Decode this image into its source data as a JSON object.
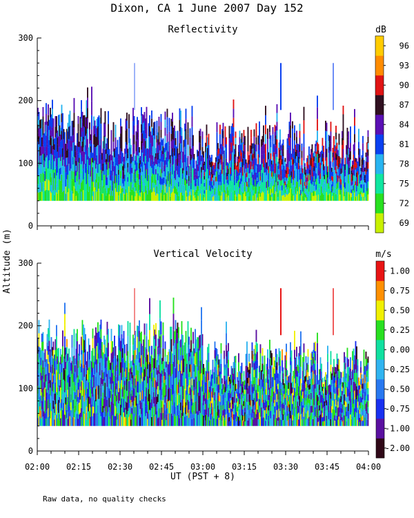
{
  "figure": {
    "title": "Dixon, CA  1 June 2007  Day 152",
    "shared_ylabel": "Altitude (m)",
    "footnote": "Raw data, no quality checks"
  },
  "chart_data": [
    {
      "type": "heatmap",
      "title": "Reflectivity",
      "xlabel": "UT  (PST + 8)",
      "ylabel": "Altitude (m)",
      "x_range_minutes": [
        0,
        120
      ],
      "ylim": [
        0,
        300
      ],
      "ytick_values": [
        0,
        100,
        200,
        300
      ],
      "ytick_labels": [
        "0",
        "100",
        "200",
        "300"
      ],
      "colorbar": {
        "unit": "dB",
        "ticks": [
          "96",
          "93",
          "90",
          "87",
          "84",
          "81",
          "78",
          "75",
          "72",
          "69"
        ],
        "colors_bottom_to_top": [
          "#c8f000",
          "#28e020",
          "#10e6a0",
          "#28b4f0",
          "#0a40f0",
          "#5a10b4",
          "#301020",
          "#e01414",
          "#ff8c00",
          "#ffcc00"
        ]
      },
      "data_description": {
        "lowest_range_gate_m": 40,
        "typical_echo_top_m": [
          120,
          200
        ],
        "isolated_returns_to_m": 260
      }
    },
    {
      "type": "heatmap",
      "title": "Vertical Velocity",
      "xlabel": "UT  (PST + 8)",
      "ylabel": "Altitude (m)",
      "x_range_minutes": [
        0,
        120
      ],
      "ylim": [
        0,
        300
      ],
      "ytick_values": [
        0,
        100,
        200,
        300
      ],
      "ytick_labels": [
        "0",
        "100",
        "200",
        "300"
      ],
      "xtick_labels": [
        "02:00",
        "02:15",
        "02:30",
        "02:45",
        "03:00",
        "03:15",
        "03:30",
        "03:45",
        "04:00"
      ],
      "colorbar": {
        "unit": "m/s",
        "ticks": [
          "1.00",
          "0.75",
          "0.50",
          "0.25",
          "0.00",
          "-0.25",
          "-0.50",
          "-0.75",
          "-1.00",
          "-2.00"
        ],
        "colors_bottom_to_top": [
          "#300818",
          "#5a10a0",
          "#1830f0",
          "#2878f0",
          "#30b4f0",
          "#10e0a0",
          "#28e020",
          "#f0f000",
          "#ff9000",
          "#e81414"
        ]
      },
      "data_description": {
        "lowest_range_gate_m": 40,
        "typical_echo_top_m": [
          140,
          240
        ],
        "isolated_returns_to_m": 260
      }
    }
  ]
}
